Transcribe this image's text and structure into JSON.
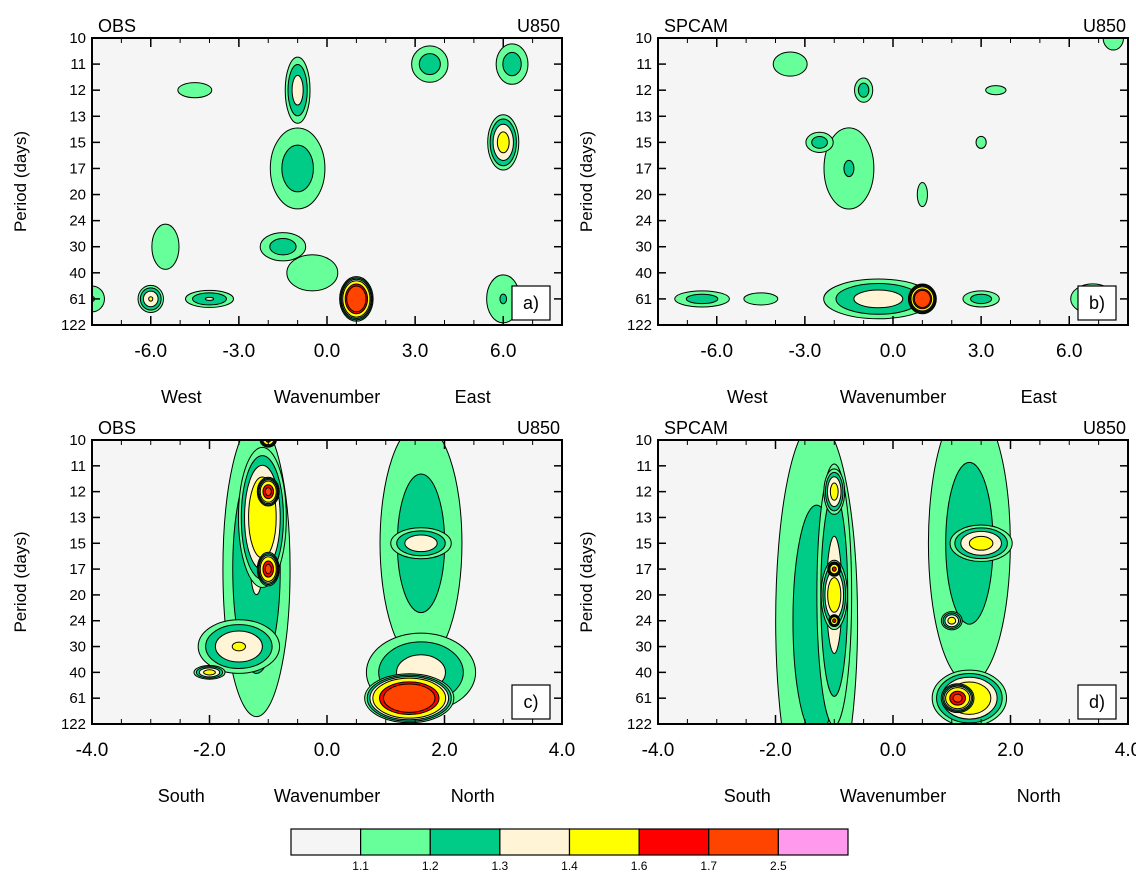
{
  "chart_data": [
    {
      "type": "heatmap",
      "panel_label": "a)",
      "title_left": "OBS",
      "title_right": "U850",
      "ylabel": "Period (days)",
      "xlabel_left": "West",
      "xlabel": "Wavenumber",
      "xlabel_right": "East",
      "xlim": [
        -8,
        8
      ],
      "xticks": [
        -6,
        -3,
        0,
        3,
        6
      ],
      "xtick_labels": [
        "-6.0",
        "-3.0",
        "0.0",
        "3.0",
        "6.0"
      ],
      "ytick_labels": [
        "10",
        "11",
        "12",
        "13",
        "15",
        "17",
        "20",
        "24",
        "30",
        "40",
        "61",
        "122"
      ],
      "contour_levels": [
        1.1,
        1.2,
        1.3,
        1.4,
        1.6,
        1.7,
        2.5
      ],
      "blobs": [
        {
          "x": -6.0,
          "period": "61",
          "rx": 0.5,
          "ry": 0.6,
          "max": 1.4
        },
        {
          "x": -8.0,
          "period": "61",
          "rx": 0.6,
          "ry": 0.7,
          "max": 1.2
        },
        {
          "x": -4.0,
          "period": "61",
          "rx": 1.0,
          "ry": 0.4,
          "max": 1.3
        },
        {
          "x": -5.5,
          "period": "30",
          "rx": 0.8,
          "ry": 1.5,
          "max": 1.15
        },
        {
          "x": -4.5,
          "period": "12",
          "rx": 1.0,
          "ry": 0.5,
          "max": 1.15
        },
        {
          "x": -1.0,
          "period": "12",
          "rx": 0.5,
          "ry": 1.5,
          "max": 1.35
        },
        {
          "x": -1.0,
          "period": "17",
          "rx": 1.2,
          "ry": 2.0,
          "max": 1.25
        },
        {
          "x": -1.5,
          "period": "30",
          "rx": 1.0,
          "ry": 0.7,
          "max": 1.25
        },
        {
          "x": -0.5,
          "period": "40",
          "rx": 1.5,
          "ry": 1.2,
          "max": 1.15
        },
        {
          "x": 1.0,
          "period": "61",
          "rx": 0.6,
          "ry": 0.9,
          "max": 2.0
        },
        {
          "x": 3.5,
          "period": "11",
          "rx": 0.8,
          "ry": 0.9,
          "max": 1.25
        },
        {
          "x": 6.3,
          "period": "11",
          "rx": 0.7,
          "ry": 1.0,
          "max": 1.25
        },
        {
          "x": 6.0,
          "period": "15",
          "rx": 0.6,
          "ry": 1.2,
          "max": 1.45
        },
        {
          "x": 6.0,
          "period": "61",
          "rx": 0.8,
          "ry": 1.3,
          "max": 1.2
        }
      ]
    },
    {
      "type": "heatmap",
      "panel_label": "b)",
      "title_left": "SPCAM",
      "title_right": "U850",
      "ylabel": "Period (days)",
      "xlabel_left": "West",
      "xlabel": "Wavenumber",
      "xlabel_right": "East",
      "xlim": [
        -8,
        8
      ],
      "xticks": [
        -6,
        -3,
        0,
        3,
        6
      ],
      "xtick_labels": [
        "-6.0",
        "-3.0",
        "0.0",
        "3.0",
        "6.0"
      ],
      "ytick_labels": [
        "10",
        "11",
        "12",
        "13",
        "15",
        "17",
        "20",
        "24",
        "30",
        "40",
        "61",
        "122"
      ],
      "contour_levels": [
        1.1,
        1.2,
        1.3,
        1.4,
        1.6,
        1.7,
        2.5
      ],
      "blobs": [
        {
          "x": -3.5,
          "period": "11",
          "rx": 1.0,
          "ry": 0.8,
          "max": 1.15
        },
        {
          "x": -1.5,
          "period": "17",
          "rx": 1.2,
          "ry": 2.2,
          "max": 1.2
        },
        {
          "x": -1.0,
          "period": "12",
          "rx": 0.4,
          "ry": 0.6,
          "max": 1.25
        },
        {
          "x": -2.5,
          "period": "15",
          "rx": 0.6,
          "ry": 0.5,
          "max": 1.25
        },
        {
          "x": 1.0,
          "period": "20",
          "rx": 0.3,
          "ry": 0.8,
          "max": 1.15
        },
        {
          "x": 3.0,
          "period": "15",
          "rx": 0.3,
          "ry": 0.4,
          "max": 1.15
        },
        {
          "x": 3.5,
          "period": "12",
          "rx": 0.6,
          "ry": 0.3,
          "max": 1.15
        },
        {
          "x": -0.5,
          "period": "61",
          "rx": 2.2,
          "ry": 0.9,
          "max": 1.35
        },
        {
          "x": 1.0,
          "period": "61",
          "rx": 0.5,
          "ry": 0.6,
          "max": 2.0
        },
        {
          "x": -6.5,
          "period": "61",
          "rx": 1.2,
          "ry": 0.4,
          "max": 1.25
        },
        {
          "x": -4.5,
          "period": "61",
          "rx": 1.0,
          "ry": 0.4,
          "max": 1.15
        },
        {
          "x": 3.0,
          "period": "61",
          "rx": 0.8,
          "ry": 0.4,
          "max": 1.25
        },
        {
          "x": 6.8,
          "period": "61",
          "rx": 1.3,
          "ry": 1.0,
          "max": 1.15
        },
        {
          "x": 7.5,
          "period": "10",
          "rx": 0.6,
          "ry": 0.8,
          "max": 1.15
        }
      ]
    },
    {
      "type": "heatmap",
      "panel_label": "c)",
      "title_left": "OBS",
      "title_right": "U850",
      "ylabel": "Period (days)",
      "xlabel_left": "South",
      "xlabel": "Wavenumber",
      "xlabel_right": "North",
      "xlim": [
        -4,
        4
      ],
      "xticks": [
        -4,
        -2,
        0,
        2,
        4
      ],
      "xtick_labels": [
        "-4.0",
        "-2.0",
        "0.0",
        "2.0",
        "4.0"
      ],
      "ytick_labels": [
        "10",
        "11",
        "12",
        "13",
        "15",
        "17",
        "20",
        "24",
        "30",
        "40",
        "61",
        "122"
      ],
      "contour_levels": [
        1.1,
        1.2,
        1.3,
        1.4,
        1.6,
        1.7,
        2.5
      ],
      "blobs": [
        {
          "x": -1.2,
          "period": "17",
          "rx": 0.7,
          "ry": 7.0,
          "max": 1.3
        },
        {
          "x": -1.1,
          "period": "13",
          "rx": 0.45,
          "ry": 3.0,
          "max": 1.55
        },
        {
          "x": -1.0,
          "period": "12",
          "rx": 0.2,
          "ry": 0.6,
          "max": 1.75
        },
        {
          "x": -1.0,
          "period": "17",
          "rx": 0.2,
          "ry": 0.7,
          "max": 1.75
        },
        {
          "x": -1.0,
          "period": "10",
          "rx": 0.15,
          "ry": 0.3,
          "max": 1.65
        },
        {
          "x": -1.5,
          "period": "30",
          "rx": 0.8,
          "ry": 1.2,
          "max": 1.4
        },
        {
          "x": -2.0,
          "period": "40",
          "rx": 0.3,
          "ry": 0.3,
          "max": 1.45
        },
        {
          "x": 1.6,
          "period": "15",
          "rx": 0.9,
          "ry": 6.0,
          "max": 1.25
        },
        {
          "x": 1.6,
          "period": "15",
          "rx": 0.6,
          "ry": 0.7,
          "max": 1.38
        },
        {
          "x": 1.6,
          "period": "40",
          "rx": 1.1,
          "ry": 1.8,
          "max": 1.35
        },
        {
          "x": 1.4,
          "period": "61",
          "rx": 0.8,
          "ry": 1.0,
          "max": 2.0
        }
      ]
    },
    {
      "type": "heatmap",
      "panel_label": "d)",
      "title_left": "SPCAM",
      "title_right": "U850",
      "ylabel": "Period (days)",
      "xlabel_left": "South",
      "xlabel": "Wavenumber",
      "xlabel_right": "North",
      "xlim": [
        -4,
        4
      ],
      "xticks": [
        -4,
        -2,
        0,
        2,
        4
      ],
      "xtick_labels": [
        "-4.0",
        "-2.0",
        "0.0",
        "2.0",
        "4.0"
      ],
      "ytick_labels": [
        "10",
        "11",
        "12",
        "13",
        "15",
        "17",
        "20",
        "24",
        "30",
        "40",
        "61",
        "122"
      ],
      "contour_levels": [
        1.1,
        1.2,
        1.3,
        1.4,
        1.6,
        1.7,
        2.5
      ],
      "blobs": [
        {
          "x": -1.3,
          "period": "24",
          "rx": 0.9,
          "ry": 10.0,
          "max": 1.25
        },
        {
          "x": -1.0,
          "period": "20",
          "rx": 0.35,
          "ry": 6.0,
          "max": 1.35
        },
        {
          "x": -1.0,
          "period": "12",
          "rx": 0.2,
          "ry": 1.0,
          "max": 1.45
        },
        {
          "x": -1.0,
          "period": "20",
          "rx": 0.25,
          "ry": 1.5,
          "max": 1.5
        },
        {
          "x": -1.0,
          "period": "17",
          "rx": 0.12,
          "ry": 0.3,
          "max": 1.65
        },
        {
          "x": -1.0,
          "period": "24",
          "rx": 0.1,
          "ry": 0.25,
          "max": 1.65
        },
        {
          "x": 1.3,
          "period": "15",
          "rx": 0.9,
          "ry": 7.0,
          "max": 1.25
        },
        {
          "x": 1.5,
          "period": "15",
          "rx": 0.6,
          "ry": 0.8,
          "max": 1.45
        },
        {
          "x": 1.0,
          "period": "24",
          "rx": 0.2,
          "ry": 0.4,
          "max": 1.45
        },
        {
          "x": 1.3,
          "period": "61",
          "rx": 0.7,
          "ry": 1.2,
          "max": 1.55
        },
        {
          "x": 1.1,
          "period": "61",
          "rx": 0.3,
          "ry": 0.6,
          "max": 1.75
        }
      ]
    }
  ],
  "colorbar": {
    "colors": [
      "#f5f5f5",
      "#66ff99",
      "#00cc88",
      "#fff5d6",
      "#ffff00",
      "#ff0000",
      "#ff4400",
      "#ff99ee"
    ],
    "labels": [
      "1.1",
      "1.2",
      "1.3",
      "1.4",
      "1.6",
      "1.7",
      "2.5"
    ]
  }
}
